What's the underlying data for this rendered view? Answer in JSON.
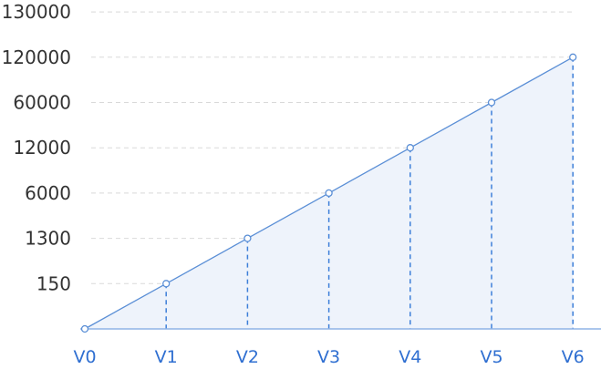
{
  "chart_data": {
    "type": "area",
    "title": "",
    "xlabel": "",
    "ylabel": "",
    "y_scale": "categorical-steps",
    "y_ticks": [
      "130000",
      "120000",
      "60000",
      "12000",
      "6000",
      "1300",
      "150"
    ],
    "categories": [
      "V0",
      "V1",
      "V2",
      "V3",
      "V4",
      "V5",
      "V6"
    ],
    "series": [
      {
        "values": [
          0,
          150,
          1300,
          6000,
          12000,
          60000,
          120000
        ]
      }
    ],
    "grid": true,
    "legend": "none",
    "colors": {
      "line": "#5b8fd6",
      "fill": "#eef3fb",
      "axis": "#8fb3e6",
      "grid": "#d9d9d9",
      "ytick_text": "#333333",
      "xtick_text": "#2f6fd1"
    }
  }
}
